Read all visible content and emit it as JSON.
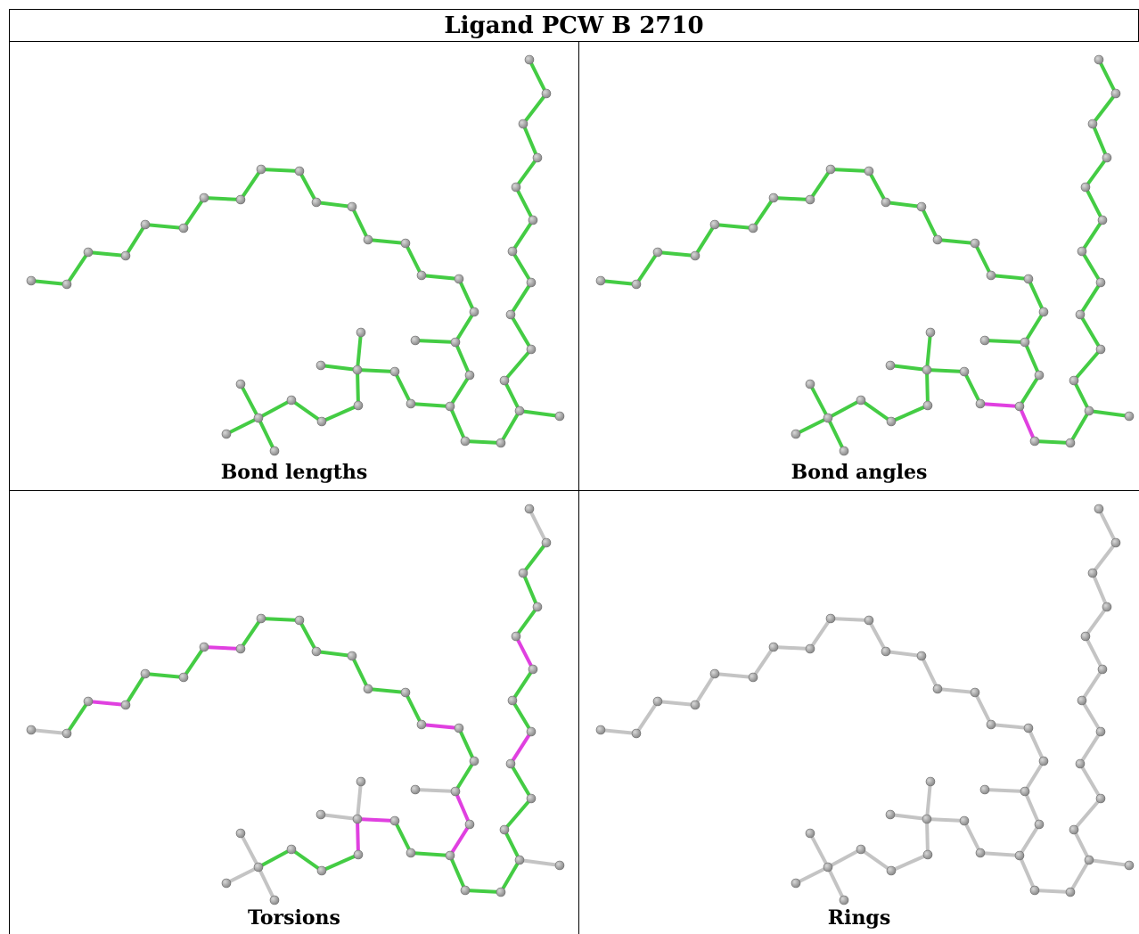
{
  "title": "Ligand PCW B 2710",
  "panels": [
    {
      "caption": "Bond lengths",
      "mode": "lengths"
    },
    {
      "caption": "Bond angles",
      "mode": "angles"
    },
    {
      "caption": "Torsions",
      "mode": "torsions"
    },
    {
      "caption": "Rings",
      "mode": "rings"
    }
  ],
  "colors": {
    "ok_bond": "#44cc44",
    "outlier_bond": "#e040e0",
    "neutral_bond": "#c4c4c4",
    "atom": "#8a8a8a",
    "atom_highlight": "#d8d8d8"
  }
}
